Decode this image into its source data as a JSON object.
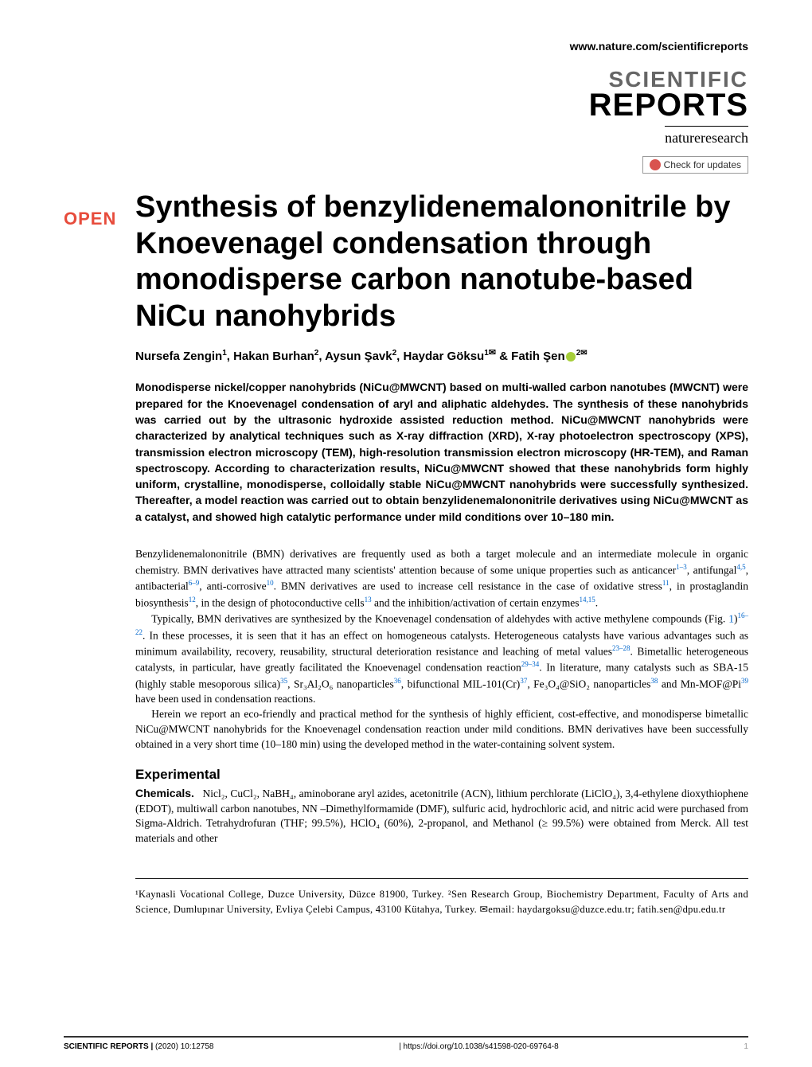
{
  "header": {
    "url": "www.nature.com/scientificreports",
    "journal_name_line1": "SCIENTIFIC",
    "journal_name_line2": "REPORTS",
    "publisher": "natureresearch",
    "check_updates": "Check for updates"
  },
  "open_badge": "OPEN",
  "title": "Synthesis of benzylidenemalononitrile by Knoevenagel condensation through monodisperse carbon nanotube-based NiCu nanohybrids",
  "authors_html": "Nursefa Zengin<sup>1</sup>, Hakan Burhan<sup>2</sup>, Aysun Şavk<sup>2</sup>, Haydar Göksu<sup>1✉</sup> & Fatih Şen",
  "author_last_sup": "2✉",
  "abstract": "Monodisperse nickel/copper nanohybrids (NiCu@MWCNT) based on multi-walled carbon nanotubes (MWCNT) were prepared for the Knoevenagel condensation of aryl and aliphatic aldehydes. The synthesis of these nanohybrids was carried out by the ultrasonic hydroxide assisted reduction method. NiCu@MWCNT nanohybrids were characterized by analytical techniques such as X-ray diffraction (XRD), X-ray photoelectron spectroscopy (XPS), transmission electron microscopy (TEM), high-resolution transmission electron microscopy (HR-TEM), and Raman spectroscopy. According to characterization results, NiCu@MWCNT showed that these nanohybrids form highly uniform, crystalline, monodisperse, colloidally stable NiCu@MWCNT nanohybrids were successfully synthesized. Thereafter, a model reaction was carried out to obtain benzylidenemalononitrile derivatives using NiCu@MWCNT as a catalyst, and showed high catalytic performance under mild conditions over 10–180 min.",
  "body": {
    "para1_a": "Benzylidenemalononitrile (BMN) derivatives are frequently used as both a target molecule and an intermediate molecule in organic chemistry. BMN derivatives have attracted many scientists' attention because of some unique properties such as anticancer",
    "ref1": "1–3",
    "para1_b": ", antifungal",
    "ref2": "4,5",
    "para1_c": ", antibacterial",
    "ref3": "6–9",
    "para1_d": ", anti-corrosive",
    "ref4": "10",
    "para1_e": ". BMN derivatives are used to increase cell resistance in the case of oxidative stress",
    "ref5": "11",
    "para1_f": ", in prostaglandin biosynthesis",
    "ref6": "12",
    "para1_g": ", in the design of photoconductive cells",
    "ref7": "13",
    "para1_h": " and the inhibition/activation of certain enzymes",
    "ref8": "14,15",
    "para1_i": ".",
    "para2_a": "Typically, BMN derivatives are synthesized by the Knoevenagel condensation of aldehydes with active methylene compounds (Fig. ",
    "fig1": "1",
    "para2_b": ")",
    "ref9": "16–22",
    "para2_c": ". In these processes, it is seen that it has an effect on homogeneous catalysts. Heterogeneous catalysts have various advantages such as minimum availability, recovery, reusability, structural deterioration resistance and leaching of metal values",
    "ref10": "23–28",
    "para2_d": ". Bimetallic heterogeneous catalysts, in particular, have greatly facilitated the Knoevenagel condensation reaction",
    "ref11": "29–34",
    "para2_e": ". In literature, many catalysts such as SBA-15 (highly stable mesoporous silica)",
    "ref12": "35",
    "para2_f": ", Sr₃Al₂O₆ nanoparticles",
    "ref13": "36",
    "para2_g": ", bifunctional MIL-101(Cr)",
    "ref14": "37",
    "para2_h": ", Fe₃O₄@SiO₂ nanoparticles",
    "ref15": "38",
    "para2_i": " and Mn-MOF@Pi",
    "ref16": "39",
    "para2_j": " have been used in condensation reactions.",
    "para3": "Herein we report an eco-friendly and practical method for the synthesis of highly efficient, cost-effective, and monodisperse bimetallic NiCu@MWCNT nanohybrids for the Knoevenagel condensation reaction under mild conditions. BMN derivatives have been successfully obtained in a very short time (10–180 min) using the developed method in the water-containing solvent system."
  },
  "experimental": {
    "heading": "Experimental",
    "sub1": "Chemicals.",
    "sub1_text": "Nicl₂, CuCl₂, NaBH₄, aminoborane aryl azides, acetonitrile (ACN), lithium perchlorate (LiClO₄), 3,4-ethylene dioxythiophene (EDOT), multiwall carbon nanotubes, NN –Dimethylformamide (DMF), sulfuric acid, hydrochloric acid, and nitric acid were purchased from Sigma-Aldrich. Tetrahydrofuran (THF; 99.5%), HClO₄ (60%), 2-propanol, and Methanol (≥ 99.5%) were obtained from Merck. All test materials and other"
  },
  "affiliations": "¹Kaynasli Vocational College, Duzce University, Düzce 81900, Turkey. ²Sen Research Group, Biochemistry Department, Faculty of Arts and Science, Dumlupınar University, Evliya Çelebi Campus, 43100 Kütahya, Turkey. ✉email: haydargoksu@duzce.edu.tr; fatih.sen@dpu.edu.tr",
  "footer": {
    "journal": "SCIENTIFIC REPORTS",
    "citation": "(2020) 10:12758",
    "doi": "| https://doi.org/10.1038/s41598-020-69764-8",
    "page": "1"
  },
  "colors": {
    "open_red": "#e74c3c",
    "link_blue": "#0066cc",
    "logo_gray": "#666666",
    "orcid_green": "#a6ce39",
    "check_red": "#d9534f"
  },
  "typography": {
    "title_fontsize": 38,
    "title_family": "Arial",
    "abstract_fontsize": 14,
    "body_fontsize": 13.5,
    "body_family": "Georgia"
  }
}
